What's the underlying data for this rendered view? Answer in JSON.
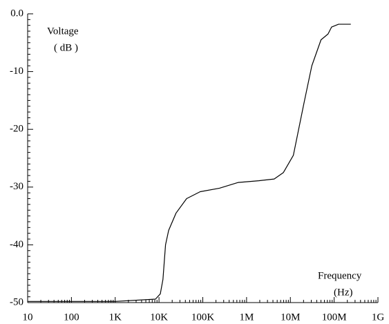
{
  "chart_data": {
    "type": "line",
    "log_x": true,
    "ylabel": [
      "Voltage",
      "( dB )"
    ],
    "xlabel": [
      "Frequency",
      "(Hz)"
    ],
    "x": [
      10,
      100,
      1000,
      8300,
      10700,
      12300,
      14100,
      16600,
      24500,
      42700,
      87100,
      240000,
      646000,
      1900000,
      4270000,
      6900000,
      11700000,
      20400000,
      30900000,
      50100000,
      72400000,
      87100000,
      126000000,
      240000000
    ],
    "series": [
      {
        "name": "Voltage",
        "color": "#000000",
        "values": [
          -49.8,
          -49.8,
          -49.8,
          -49.4,
          -48.5,
          -46,
          -40,
          -37.5,
          -34.5,
          -32,
          -30.8,
          -30.2,
          -29.2,
          -28.9,
          -28.6,
          -27.5,
          -24.5,
          -15.5,
          -9,
          -4.5,
          -3.5,
          -2.3,
          -1.8,
          -1.8
        ]
      }
    ],
    "xlim": [
      10,
      1000000000
    ],
    "xticks": [
      10,
      100,
      {
        "value": 1000,
        "label": "1K"
      },
      {
        "value": 10000,
        "label": "10K"
      },
      {
        "value": 100000,
        "label": "100K"
      },
      {
        "value": 1000000,
        "label": "1M"
      },
      {
        "value": 10000000,
        "label": "10M"
      },
      {
        "value": 100000000,
        "label": "100M"
      },
      {
        "value": 1000000000,
        "label": "1G"
      }
    ],
    "ylim": [
      -50,
      0
    ],
    "yticks": [
      {
        "value": 0,
        "label": "0.0"
      },
      -10,
      -20,
      -30,
      -40,
      -50
    ],
    "grid": false
  }
}
